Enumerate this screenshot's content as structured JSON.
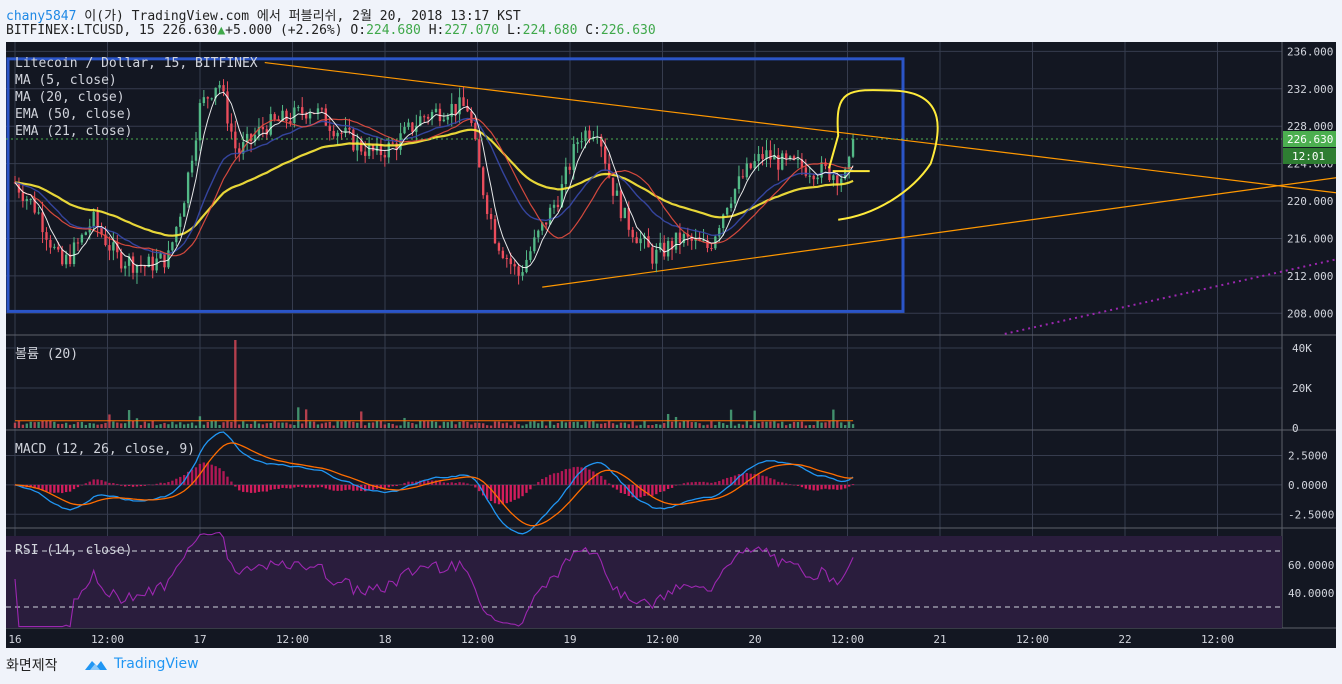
{
  "header": {
    "user": "chany5847",
    "publish_text": " 이(가) TradingView.com 에서 퍼블리쉬, 2월 20, 2018 13:17 KST",
    "symbol": "BITFINEX:LTCUSD, 15",
    "last": "226.630",
    "arrow": "▲",
    "change": "+5.000 (+2.26%)",
    "o_label": "O:",
    "o": "224.680",
    "h_label": "H:",
    "h": "227.070",
    "l_label": "L:",
    "l": "224.680",
    "c_label": "C:",
    "c": "226.630"
  },
  "footer": {
    "snapshot_label": "화면제작",
    "brand": "TradingView"
  },
  "colors": {
    "background": "#131722",
    "grid": "#363c4e",
    "candle_up": "#53b987",
    "candle_down": "#eb4d5c",
    "ma5": "#ffffff",
    "ma20": "#e84e40",
    "ema50": "#ffeb3b",
    "ema21": "#3949ab",
    "trendline": "#ff9800",
    "box": "#2b55c8",
    "drawing": "#ffeb3b",
    "rsi": "#9c27b0",
    "macd": "#2196f3",
    "signal": "#ff6d00",
    "price_tag": "#4caf50"
  },
  "chart_data": [
    {
      "type": "candlestick",
      "title": "Litecoin / Dollar, 15, BITFINEX",
      "legend": [
        "MA (5, close)",
        "MA (20, close)",
        "EMA (50, close)",
        "EMA (21, close)"
      ],
      "x_ticks": [
        "16",
        "12:00",
        "17",
        "12:00",
        "18",
        "12:00",
        "19",
        "12:00",
        "20",
        "12:00",
        "21",
        "12:00",
        "22",
        "12:00"
      ],
      "ylim": [
        206,
        237
      ],
      "y_ticks": [
        "236.000",
        "232.000",
        "228.000",
        "224.000",
        "220.000",
        "216.000",
        "212.000",
        "208.000"
      ],
      "last_price": "226.630",
      "countdown": "12:01",
      "x_days": [
        16,
        20.05
      ],
      "close_keypoints": [
        [
          16.0,
          222
        ],
        [
          16.12,
          219
        ],
        [
          16.25,
          213
        ],
        [
          16.33,
          215
        ],
        [
          16.42,
          218
        ],
        [
          16.55,
          214
        ],
        [
          16.7,
          213
        ],
        [
          16.83,
          214
        ],
        [
          16.92,
          221
        ],
        [
          17.0,
          230
        ],
        [
          17.1,
          233
        ],
        [
          17.2,
          225
        ],
        [
          17.35,
          228
        ],
        [
          17.5,
          229
        ],
        [
          17.6,
          230
        ],
        [
          17.72,
          228
        ],
        [
          17.85,
          226
        ],
        [
          17.95,
          225
        ],
        [
          18.05,
          226
        ],
        [
          18.2,
          229
        ],
        [
          18.35,
          230
        ],
        [
          18.45,
          230
        ],
        [
          18.52,
          222
        ],
        [
          18.6,
          216
        ],
        [
          18.72,
          212
        ],
        [
          18.82,
          216
        ],
        [
          18.95,
          221
        ],
        [
          19.05,
          227
        ],
        [
          19.15,
          228
        ],
        [
          19.22,
          222
        ],
        [
          19.3,
          218
        ],
        [
          19.45,
          214
        ],
        [
          19.6,
          216
        ],
        [
          19.75,
          215
        ],
        [
          19.85,
          220
        ],
        [
          19.95,
          223
        ],
        [
          20.05,
          225
        ],
        [
          20.15,
          224
        ],
        [
          20.3,
          223.5
        ],
        [
          20.42,
          223
        ],
        [
          20.5,
          222.5
        ],
        [
          20.53,
          226.6
        ]
      ],
      "series": [
        {
          "name": "MA (5, close)",
          "style": "smoothed close (5)"
        },
        {
          "name": "MA (20, close)",
          "style": "smoothed close (20)"
        },
        {
          "name": "EMA (50, close)",
          "style": "smoothed close (50)"
        },
        {
          "name": "EMA (21, close)",
          "style": "smoothed close (21)"
        }
      ]
    },
    {
      "type": "bar",
      "title": "볼륨 (20)",
      "ylim": [
        0,
        45000
      ],
      "y_ticks": [
        "40K",
        "20K",
        "0"
      ]
    },
    {
      "type": "line",
      "title": "MACD (12, 26, close, 9)",
      "ylim": [
        -3.5,
        4.5
      ],
      "y_ticks": [
        "2.5000",
        "0.0000",
        "-2.5000"
      ]
    },
    {
      "type": "line",
      "title": "RSI (14, close)",
      "ylim": [
        15,
        85
      ],
      "bands": [
        30,
        70
      ],
      "y_ticks": [
        "60.0000",
        "40.0000"
      ]
    }
  ]
}
